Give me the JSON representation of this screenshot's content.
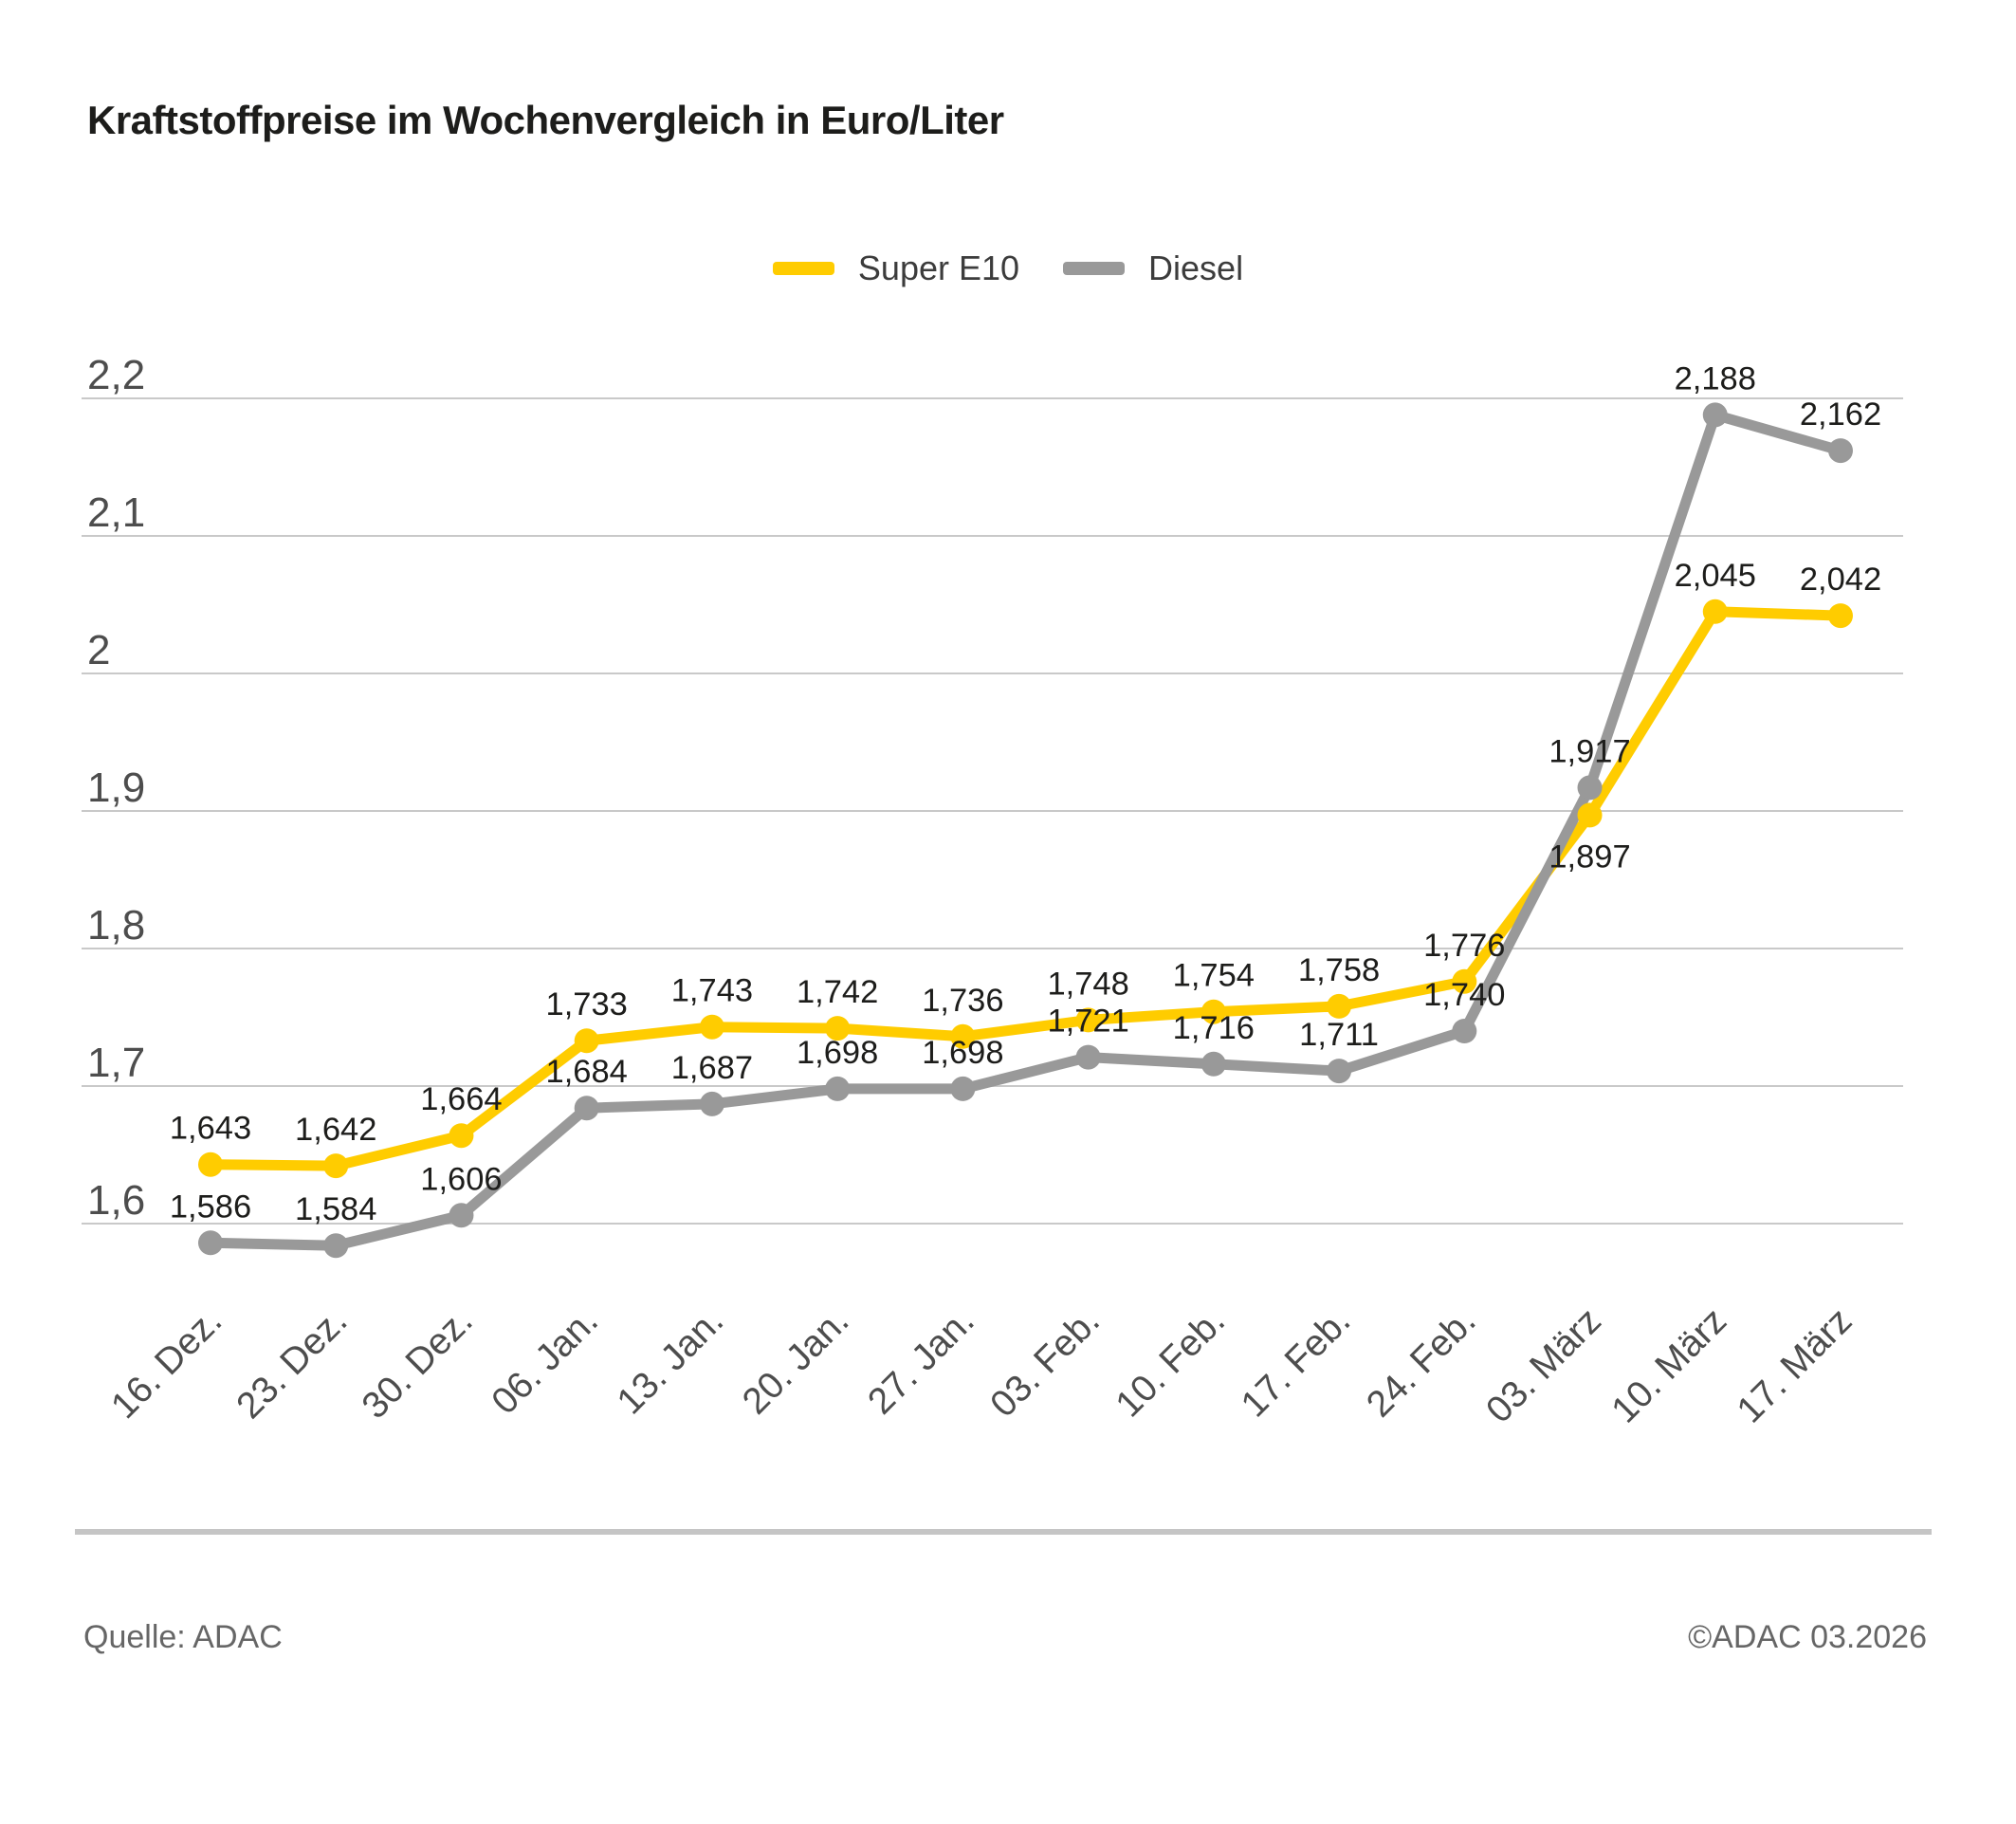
{
  "chart_data": {
    "type": "line",
    "title": "Kraftstoffpreise im Wochenvergleich in Euro/Liter",
    "categories": [
      "16. Dez.",
      "23. Dez.",
      "30. Dez.",
      "06. Jan.",
      "13. Jan.",
      "20. Jan.",
      "27. Jan.",
      "03. Feb.",
      "10. Feb.",
      "17. Feb.",
      "24. Feb.",
      "03. März",
      "10. März",
      "17. März"
    ],
    "series": [
      {
        "name": "Super E10",
        "color": "#FFCC00",
        "values": [
          1.643,
          1.642,
          1.664,
          1.733,
          1.743,
          1.742,
          1.736,
          1.748,
          1.754,
          1.758,
          1.776,
          1.897,
          2.045,
          2.042
        ]
      },
      {
        "name": "Diesel",
        "color": "#999999",
        "values": [
          1.586,
          1.584,
          1.606,
          1.684,
          1.687,
          1.698,
          1.698,
          1.721,
          1.716,
          1.711,
          1.74,
          1.917,
          2.188,
          2.162
        ]
      }
    ],
    "y_ticks": [
      2.2,
      2.1,
      2.0,
      1.9,
      1.8,
      1.7,
      1.6
    ],
    "ylim": [
      1.55,
      2.25
    ],
    "grid": "horizontal",
    "legend_position": "top-center",
    "decimal_separator": ","
  },
  "footer": {
    "source": "Quelle: ADAC",
    "copyright": "©ADAC 03.2026"
  },
  "colors": {
    "grid": "#c9c9c9",
    "axis_text": "#4d4d4d",
    "data_label": "#1d1d1b",
    "footer_text": "#666666",
    "divider": "#c5c5c5"
  }
}
